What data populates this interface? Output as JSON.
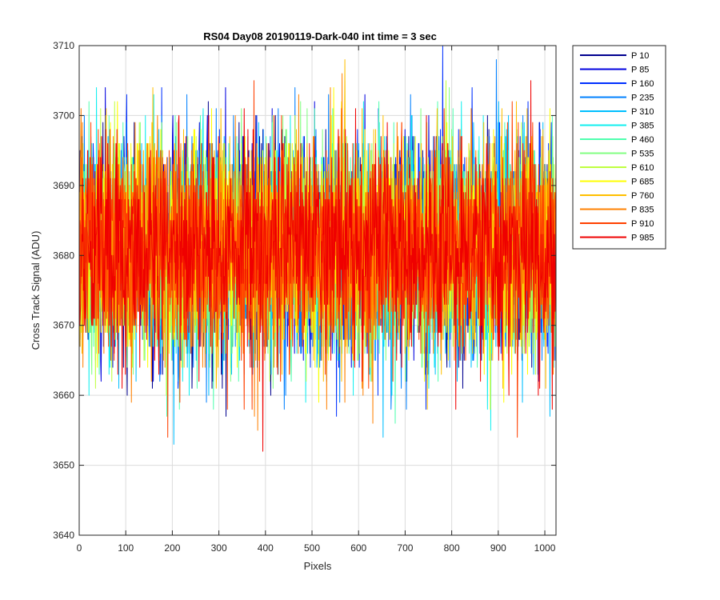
{
  "chart_data": {
    "type": "line",
    "title": "RS04 Day08 20190119-Dark-040 int time = 3 sec",
    "xlabel": "Pixels",
    "ylabel": "Cross Track Signal (ADU)",
    "xlim": [
      0,
      1024
    ],
    "ylim": [
      3640,
      3710
    ],
    "xticks": [
      0,
      100,
      200,
      300,
      400,
      500,
      600,
      700,
      800,
      900,
      1000
    ],
    "yticks": [
      3640,
      3650,
      3660,
      3670,
      3680,
      3690,
      3700,
      3710
    ],
    "grid": true,
    "legend_position": "outside-right",
    "noise_model": {
      "mean": 3681,
      "std": 7.5,
      "min": 3649,
      "max": 3710,
      "points_per_series": 1024
    },
    "series": [
      {
        "name": "P 10",
        "color": "#00008f"
      },
      {
        "name": "P 85",
        "color": "#0000df"
      },
      {
        "name": "P 160",
        "color": "#0030ff"
      },
      {
        "name": "P 235",
        "color": "#0080ff"
      },
      {
        "name": "P 310",
        "color": "#00bfff"
      },
      {
        "name": "P 385",
        "color": "#10efef"
      },
      {
        "name": "P 460",
        "color": "#50ffaf"
      },
      {
        "name": "P 535",
        "color": "#80ff80"
      },
      {
        "name": "P 610",
        "color": "#bfff40"
      },
      {
        "name": "P 685",
        "color": "#ffff00"
      },
      {
        "name": "P 760",
        "color": "#ffbf00"
      },
      {
        "name": "P 835",
        "color": "#ff8000"
      },
      {
        "name": "P 910",
        "color": "#ff4000"
      },
      {
        "name": "P 985",
        "color": "#ef0000"
      }
    ]
  }
}
